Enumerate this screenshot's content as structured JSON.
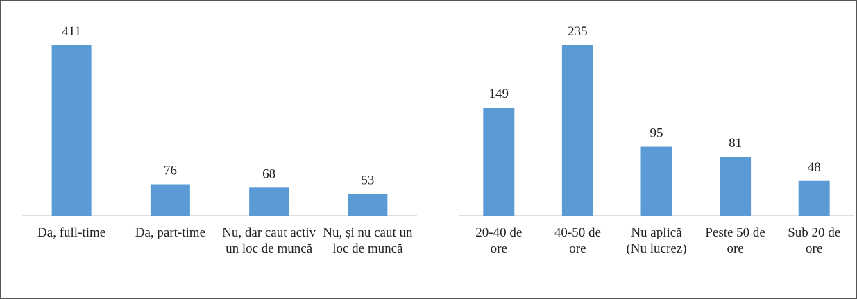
{
  "chart_data": [
    {
      "type": "bar",
      "categories": [
        "Da, full-time",
        "Da, part-time",
        "Nu, dar caut activ un loc de muncă",
        "Nu, și nu caut un loc de muncă"
      ],
      "values": [
        411,
        76,
        68,
        53
      ],
      "color": "#5b9bd5"
    },
    {
      "type": "bar",
      "categories": [
        "20-40 de ore",
        "40-50 de ore",
        "Nu aplică (Nu lucrez)",
        "Peste 50 de ore",
        "Sub 20 de ore"
      ],
      "values": [
        149,
        235,
        95,
        81,
        48
      ],
      "color": "#5b9bd5"
    }
  ]
}
